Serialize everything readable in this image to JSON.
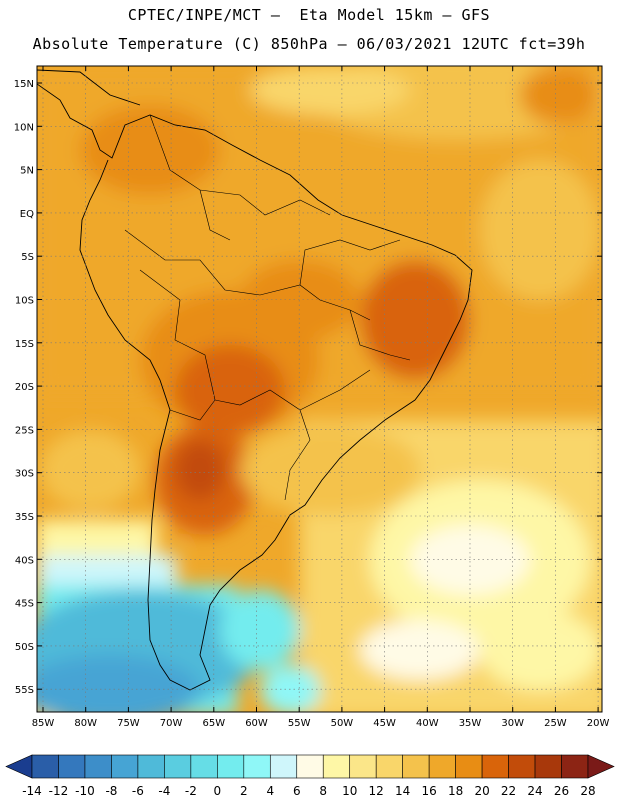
{
  "header": {
    "line1": "CPTEC/INPE/MCT –  Eta Model 15km – GFS",
    "line2": "Absolute Temperature (C) 850hPa – 06/03/2021 12UTC fct=39h"
  },
  "axes": {
    "lon_labels": [
      "85W",
      "80W",
      "75W",
      "70W",
      "65W",
      "60W",
      "55W",
      "50W",
      "45W",
      "40W",
      "35W",
      "30W",
      "25W",
      "20W"
    ],
    "lat_labels": [
      "15N",
      "10N",
      "5N",
      "EQ",
      "5S",
      "10S",
      "15S",
      "20S",
      "25S",
      "30S",
      "35S",
      "40S",
      "45S",
      "50S",
      "55S"
    ]
  },
  "colorbar": {
    "labels": [
      "-14",
      "-12",
      "-10",
      "-8",
      "-6",
      "-4",
      "-2",
      "0",
      "2",
      "4",
      "6",
      "8",
      "10",
      "12",
      "14",
      "16",
      "18",
      "20",
      "22",
      "24",
      "26",
      "28"
    ],
    "colors": [
      "#1a3d8f",
      "#2a5ea8",
      "#3478bd",
      "#3d8ec9",
      "#46a4d4",
      "#4fbad9",
      "#5acde0",
      "#66dde6",
      "#73ecee",
      "#8ff7f7",
      "#cff6fb",
      "#fffbe6",
      "#fef7a6",
      "#fbe689",
      "#f9d66a",
      "#f4c24c",
      "#efa82a",
      "#e88d14",
      "#d9640a",
      "#c24c0a",
      "#a8380b",
      "#8c2414",
      "#7a1a18"
    ]
  }
}
